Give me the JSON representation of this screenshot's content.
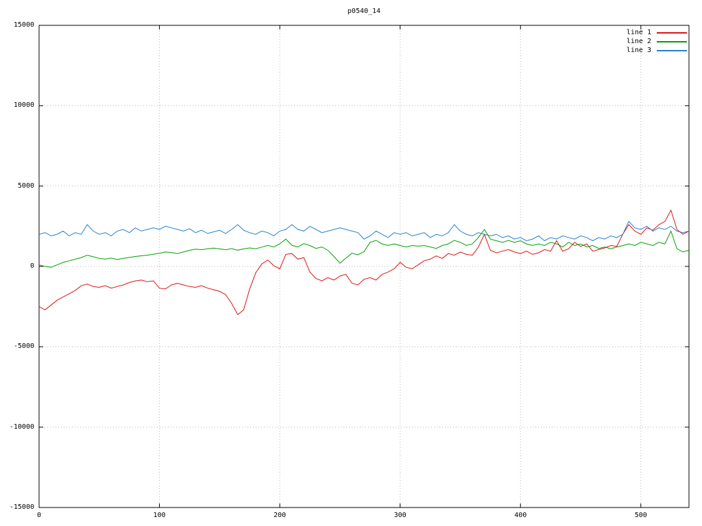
{
  "title": "p0540_14",
  "chart_data": {
    "type": "line",
    "title": "p0540_14",
    "xlabel": "",
    "ylabel": "",
    "xlim": [
      0,
      540
    ],
    "ylim": [
      -15000,
      15000
    ],
    "xticks": [
      0,
      100,
      200,
      300,
      400,
      500
    ],
    "yticks": [
      -15000,
      -10000,
      -5000,
      0,
      5000,
      10000,
      15000
    ],
    "grid": true,
    "legend_position": "top-right",
    "x": [
      0,
      5,
      10,
      15,
      20,
      25,
      30,
      35,
      40,
      45,
      50,
      55,
      60,
      65,
      70,
      75,
      80,
      85,
      90,
      95,
      100,
      105,
      110,
      115,
      120,
      125,
      130,
      135,
      140,
      145,
      150,
      155,
      160,
      165,
      170,
      175,
      180,
      185,
      190,
      195,
      200,
      205,
      210,
      215,
      220,
      225,
      230,
      235,
      240,
      245,
      250,
      255,
      260,
      265,
      270,
      275,
      280,
      285,
      290,
      295,
      300,
      305,
      310,
      315,
      320,
      325,
      330,
      335,
      340,
      345,
      350,
      355,
      360,
      365,
      370,
      375,
      380,
      385,
      390,
      395,
      400,
      405,
      410,
      415,
      420,
      425,
      430,
      435,
      440,
      445,
      450,
      455,
      460,
      465,
      470,
      475,
      480,
      485,
      490,
      495,
      500,
      505,
      510,
      515,
      520,
      525,
      530,
      535,
      540
    ],
    "series": [
      {
        "name": "line 1",
        "color": "#dd1111",
        "values": [
          -2500,
          -2700,
          -2400,
          -2100,
          -1900,
          -1700,
          -1500,
          -1200,
          -1100,
          -1250,
          -1300,
          -1200,
          -1350,
          -1250,
          -1150,
          -1000,
          -900,
          -850,
          -950,
          -900,
          -1350,
          -1400,
          -1150,
          -1050,
          -1150,
          -1250,
          -1300,
          -1200,
          -1350,
          -1450,
          -1550,
          -1750,
          -2300,
          -3000,
          -2700,
          -1400,
          -400,
          150,
          400,
          50,
          -150,
          750,
          800,
          450,
          550,
          -350,
          -750,
          -900,
          -700,
          -850,
          -600,
          -500,
          -1050,
          -1150,
          -800,
          -700,
          -850,
          -500,
          -350,
          -150,
          250,
          -50,
          -150,
          100,
          350,
          450,
          650,
          500,
          800,
          700,
          900,
          750,
          700,
          1200,
          2000,
          1000,
          850,
          950,
          1050,
          900,
          800,
          950,
          750,
          850,
          1050,
          950,
          1600,
          950,
          1100,
          1500,
          1250,
          1400,
          950,
          1050,
          1150,
          1300,
          1250,
          2000,
          2600,
          2200,
          2000,
          2400,
          2250,
          2600,
          2800,
          3500,
          2300,
          2000,
          2200
        ]
      },
      {
        "name": "line 2",
        "color": "#00a000",
        "values": [
          100,
          0,
          -50,
          100,
          250,
          350,
          450,
          550,
          700,
          600,
          500,
          450,
          520,
          430,
          500,
          560,
          620,
          660,
          700,
          760,
          820,
          900,
          860,
          800,
          900,
          1000,
          1080,
          1040,
          1100,
          1140,
          1090,
          1040,
          1110,
          1010,
          1090,
          1150,
          1100,
          1200,
          1310,
          1210,
          1400,
          1700,
          1320,
          1210,
          1420,
          1300,
          1120,
          1210,
          1000,
          620,
          200,
          520,
          820,
          720,
          920,
          1500,
          1620,
          1400,
          1310,
          1400,
          1300,
          1210,
          1300,
          1260,
          1300,
          1210,
          1120,
          1300,
          1400,
          1620,
          1500,
          1310,
          1400,
          1800,
          2300,
          1700,
          1600,
          1500,
          1620,
          1500,
          1600,
          1400,
          1310,
          1400,
          1300,
          1500,
          1400,
          1210,
          1500,
          1300,
          1400,
          1210,
          1300,
          1120,
          1210,
          1100,
          1210,
          1300,
          1400,
          1300,
          1500,
          1400,
          1300,
          1500,
          1400,
          2200,
          1100,
          900,
          1000
        ]
      },
      {
        "name": "line 3",
        "color": "#2080d0",
        "values": [
          2000,
          2100,
          1900,
          2000,
          2200,
          1900,
          2100,
          2000,
          2600,
          2200,
          2000,
          2100,
          1900,
          2200,
          2300,
          2100,
          2400,
          2200,
          2300,
          2400,
          2300,
          2500,
          2400,
          2300,
          2200,
          2350,
          2100,
          2250,
          2050,
          2150,
          2250,
          2050,
          2300,
          2600,
          2250,
          2100,
          2000,
          2200,
          2100,
          1900,
          2200,
          2300,
          2600,
          2300,
          2200,
          2500,
          2300,
          2100,
          2200,
          2300,
          2400,
          2300,
          2200,
          2100,
          1700,
          1900,
          2200,
          2000,
          1800,
          2100,
          2000,
          2100,
          1900,
          2000,
          2100,
          1800,
          2000,
          1900,
          2100,
          2600,
          2200,
          2000,
          1900,
          2100,
          2000,
          1900,
          2000,
          1800,
          1900,
          1700,
          1800,
          1600,
          1700,
          1900,
          1600,
          1800,
          1700,
          1900,
          1800,
          1700,
          1900,
          1800,
          1600,
          1800,
          1700,
          1900,
          1800,
          2000,
          2800,
          2400,
          2300,
          2500,
          2200,
          2400,
          2300,
          2500,
          2200,
          2100,
          2200
        ]
      }
    ]
  }
}
